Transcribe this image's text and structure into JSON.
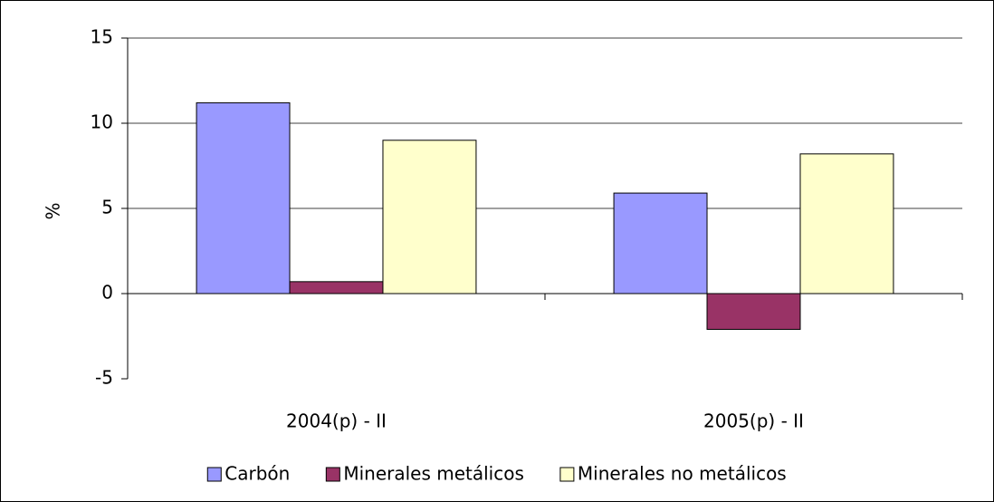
{
  "chart_data": {
    "type": "bar",
    "ylabel": "%",
    "categories": [
      "2004(p) - II",
      "2005(p) - II"
    ],
    "series": [
      {
        "name": "Carbón",
        "color": "#9999ff",
        "values": [
          11.2,
          5.9
        ]
      },
      {
        "name": "Minerales metálicos",
        "color": "#993366",
        "values": [
          0.7,
          -2.1
        ]
      },
      {
        "name": "Minerales no metálicos",
        "color": "#ffffcc",
        "values": [
          9.0,
          8.2
        ]
      }
    ],
    "ylim": [
      -5,
      15
    ],
    "yticks": [
      -5,
      0,
      5,
      10,
      15
    ],
    "grid": true,
    "legend": "bottom"
  }
}
